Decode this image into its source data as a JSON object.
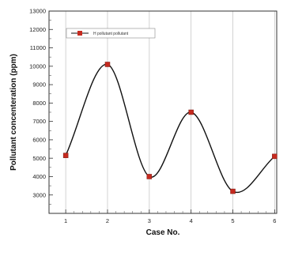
{
  "chart_data": {
    "type": "line",
    "xlabel": "Case No.",
    "ylabel": "Pollutant concenteration (ppm)",
    "xlim": [
      0.6,
      6.05
    ],
    "ylim": [
      2000,
      13000
    ],
    "x_ticks": [
      1,
      2,
      3,
      4,
      5,
      6
    ],
    "y_ticks": [
      3000,
      4000,
      5000,
      6000,
      7000,
      8000,
      9000,
      10000,
      11000,
      12000,
      13000
    ],
    "grid": "vertical",
    "legend_position": "top-left",
    "series": [
      {
        "name": "H pollutant pollutant",
        "color": "#c62a1f",
        "marker": "square",
        "x": [
          1,
          2,
          3,
          4,
          5,
          6
        ],
        "values": [
          5150,
          10100,
          4000,
          7500,
          3200,
          5100
        ]
      }
    ]
  }
}
